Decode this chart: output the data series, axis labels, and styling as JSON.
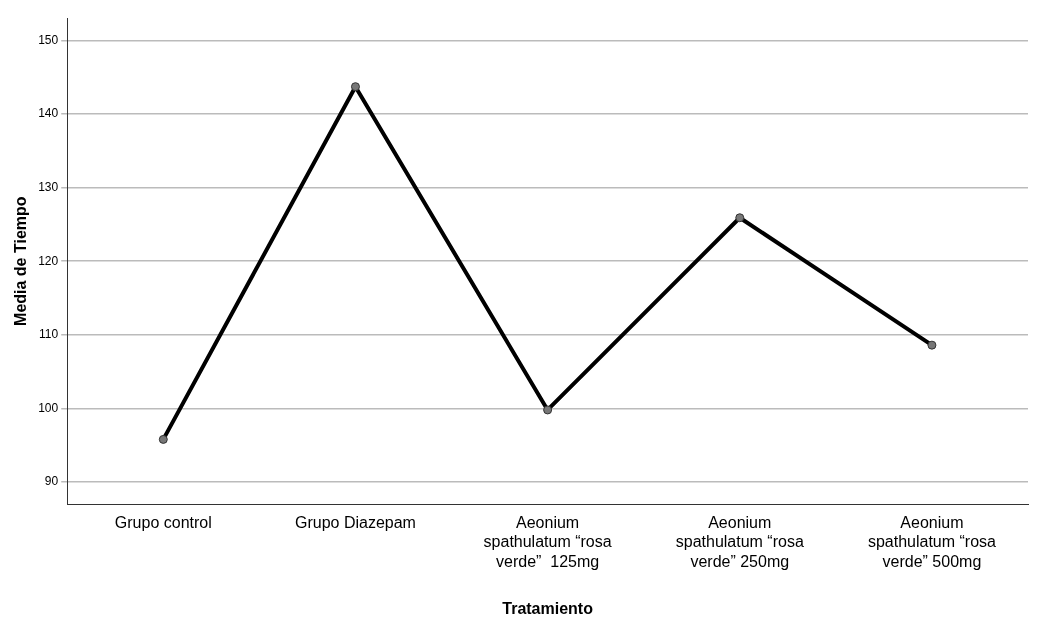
{
  "chart_data": {
    "type": "line",
    "xlabel": "Tratamiento",
    "ylabel": "Media de Tiempo",
    "categories": [
      "Grupo control",
      "Grupo Diazepam",
      "Aeonium spathulatum “rosa verde”  125mg",
      "Aeonium spathulatum “rosa verde” 250mg",
      "Aeonium spathulatum “rosa verde” 500mg"
    ],
    "series": [
      {
        "color": "#000000",
        "values": [
          95.8,
          143.7,
          99.8,
          125.9,
          108.6
        ]
      }
    ],
    "ylim": [
      87,
      153
    ],
    "yticks": [
      90,
      100,
      110,
      120,
      130,
      140,
      150
    ],
    "grid": "y",
    "legend": false,
    "marker": "circle",
    "line_style": "solid"
  }
}
